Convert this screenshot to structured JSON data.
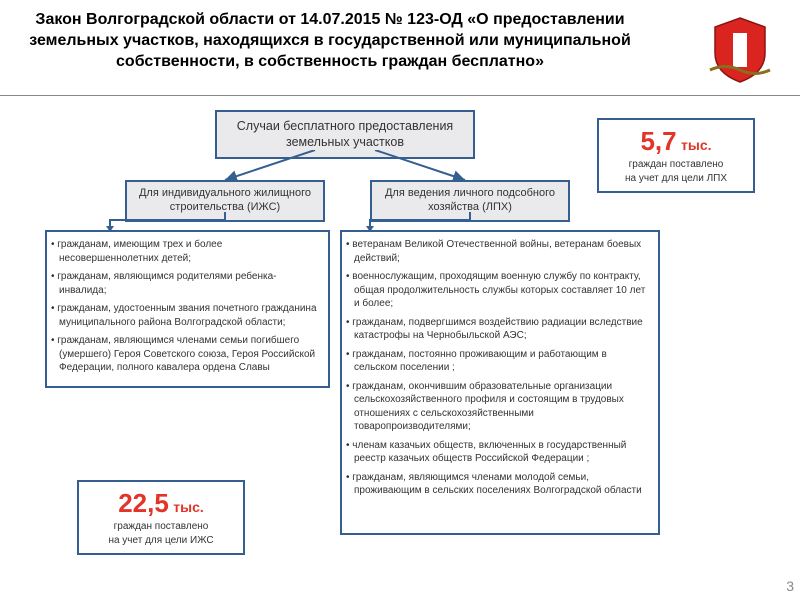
{
  "title": "Закон Волгоградской области от 14.07.2015  № 123-ОД «О предоставлении земельных участков, находящихся в государственной или муниципальной собственности, в собственность граждан бесплатно»",
  "page_number": "3",
  "colors": {
    "box_border": "#355f91",
    "box_fill": "#eaeaec",
    "accent_red": "#e23428",
    "text": "#333333"
  },
  "top_box": "Случаи бесплатного предоставления земельных участков",
  "branch_left": "Для индивидуального жилищного строительства (ИЖС)",
  "branch_right": "Для ведения личного подсобного хозяйства (ЛПХ)",
  "list_left": [
    "гражданам, имеющим трех и более несовершеннолетних детей;",
    "гражданам, являющимся родителями ребенка-инвалида;",
    "гражданам, удостоенным звания почетного гражданина муниципального района Волгоградской области;",
    "гражданам, являющимся членами семьи погибшего (умершего) Героя Советского союза, Героя Российской Федерации, полного кавалера ордена Славы"
  ],
  "list_right": [
    "ветеранам Великой Отечественной войны, ветеранам боевых действий;",
    "военнослужащим, проходящим военную службу по контракту, общая продолжительность службы которых составляет 10 лет и более;",
    "гражданам, подвергшимся воздействию радиации вследствие катастрофы на Чернобыльской АЭС;",
    "гражданам, постоянно проживающим и работающим в сельском поселении ;",
    "гражданам, окончившим образовательные организации сельскохозяйственного профиля и состоящим в трудовых отношениях с сельскохозяйственными товаропроизводителями;",
    "членам казачьих обществ, включенных в государственный реестр казачьих обществ Российской Федерации ;",
    "гражданам, являющимся членами молодой семьи, проживающим в сельских поселениях Волгоградской области"
  ],
  "stat_left": {
    "num": "22,5",
    "unit": "тыс.",
    "text1": "граждан поставлено",
    "text2": "на учет для цели  ИЖС"
  },
  "stat_right": {
    "num": "5,7",
    "unit": "тыс.",
    "text1": "граждан поставлено",
    "text2": "на учет для цели ЛПХ"
  }
}
